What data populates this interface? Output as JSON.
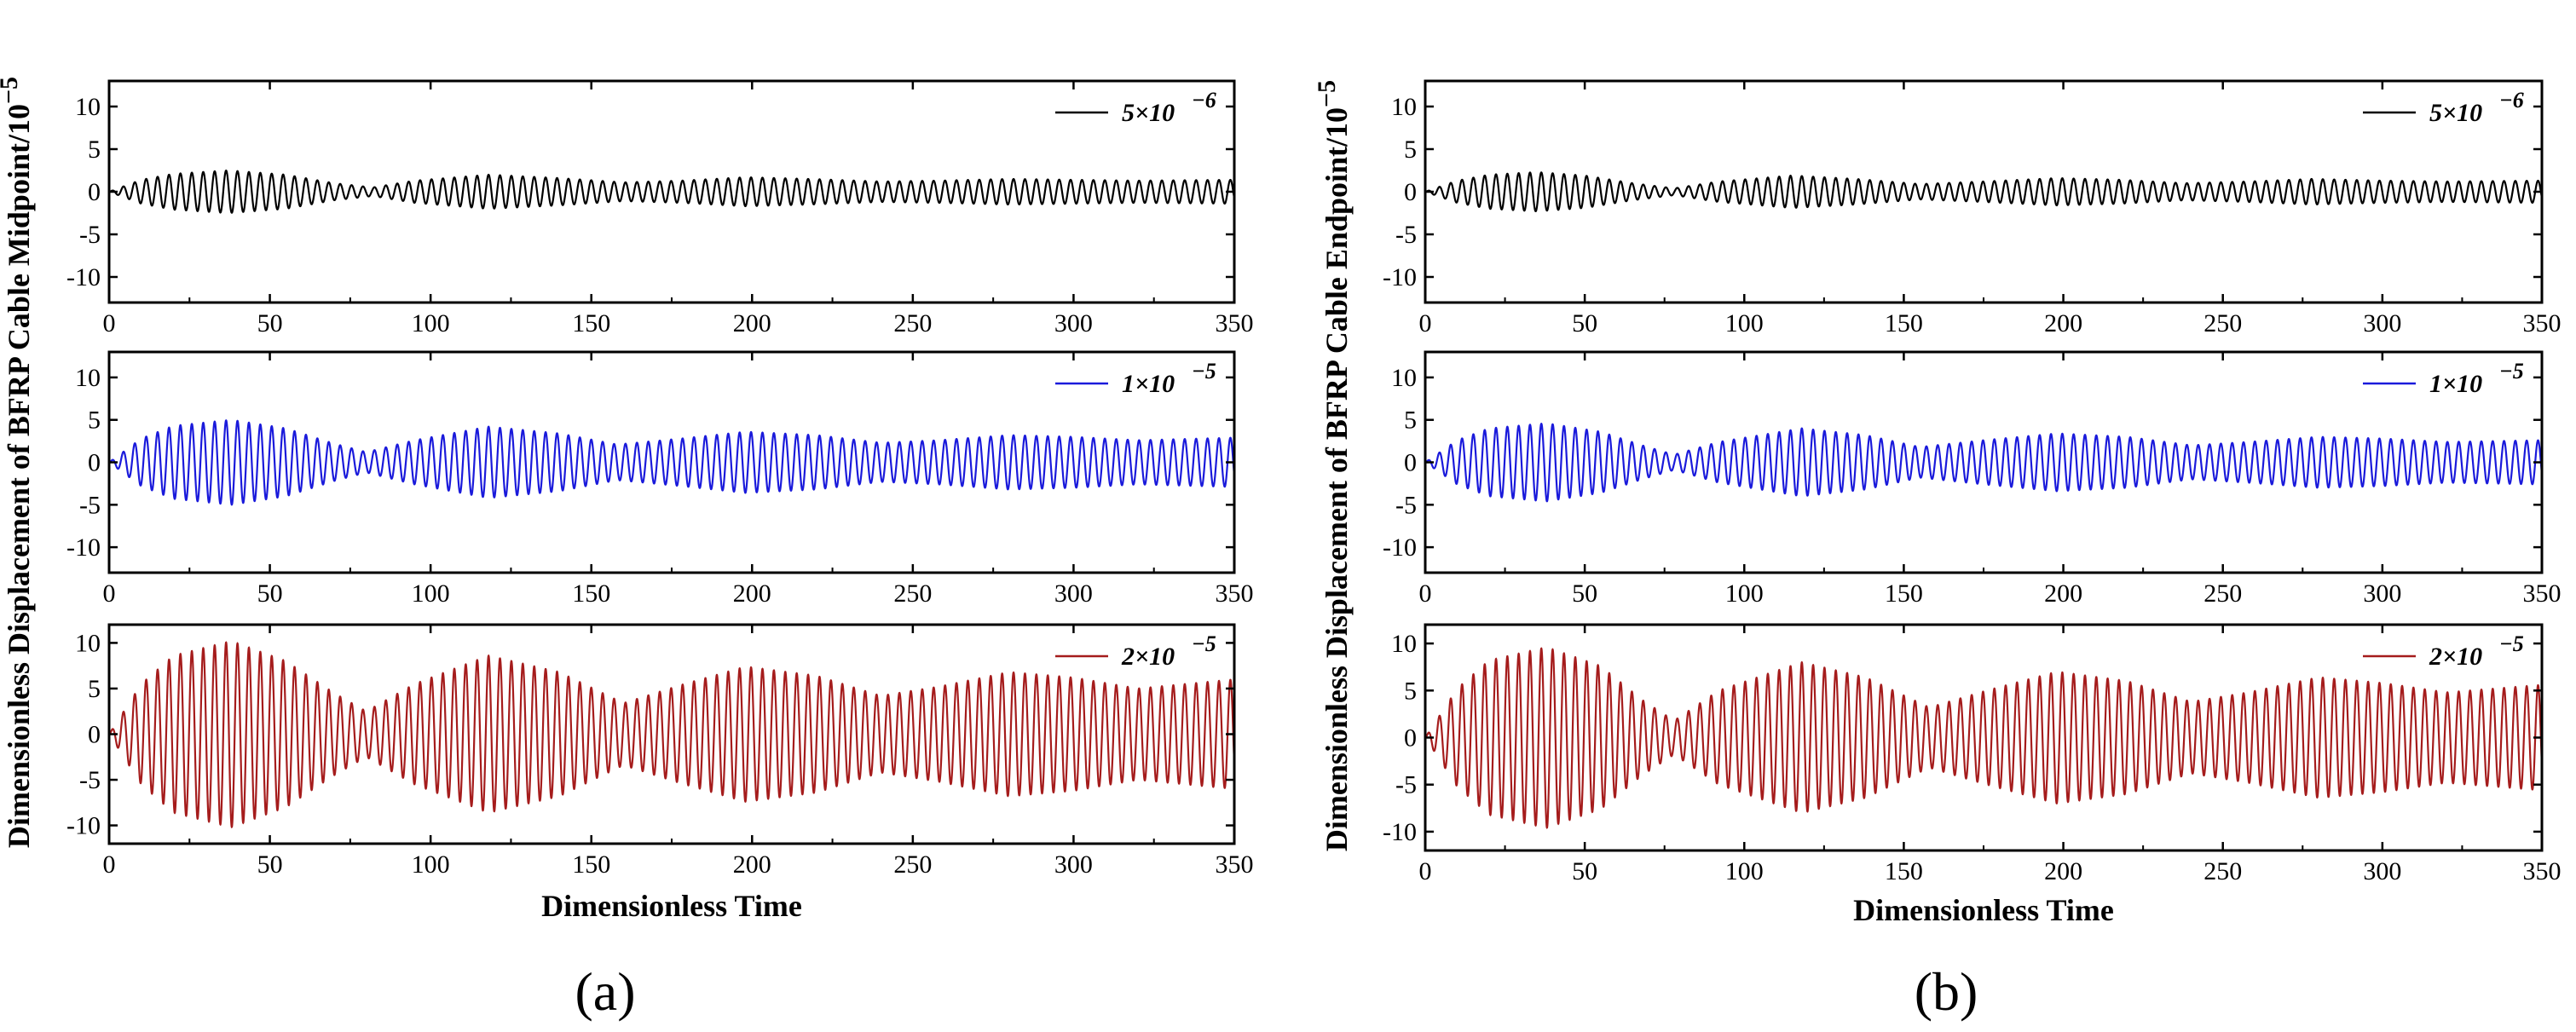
{
  "chart_data": [
    {
      "id": "a",
      "caption": "(a)",
      "ylabel": "Dimensionless Displacement of BFRP Cable Midpoint/10",
      "ylabel_exponent": "−5",
      "xlabel": "Dimensionless Time",
      "panels": [
        {
          "type": "line",
          "series_name": "5×10 −6",
          "legend_base": "5×10",
          "legend_exp": "−6",
          "color": "#000000",
          "xlim": [
            0,
            350
          ],
          "ylim": [
            -13,
            13
          ],
          "xticks": [
            "0",
            "50",
            "100",
            "150",
            "200",
            "250",
            "300",
            "350"
          ],
          "yticks": [
            "10",
            "5",
            "0",
            "-5",
            "-10"
          ],
          "ytick_values": [
            10,
            5,
            0,
            -5,
            -10
          ],
          "envelope_t": [
            0,
            10,
            20,
            37,
            55,
            70,
            82,
            95,
            118,
            140,
            160,
            178,
            198,
            218,
            240,
            258,
            280,
            300,
            320,
            350
          ],
          "envelope_a": [
            0.0,
            1.4,
            2.1,
            2.5,
            2.0,
            1.0,
            0.5,
            1.3,
            2.0,
            1.6,
            1.1,
            1.3,
            1.7,
            1.5,
            1.2,
            1.3,
            1.5,
            1.4,
            1.3,
            1.4
          ]
        },
        {
          "type": "line",
          "series_name": "1×10 −5",
          "legend_base": "1×10",
          "legend_exp": "−5",
          "color": "#1a1adb",
          "xlim": [
            0,
            350
          ],
          "ylim": [
            -13,
            13
          ],
          "xticks": [
            "0",
            "50",
            "100",
            "150",
            "200",
            "250",
            "300",
            "350"
          ],
          "yticks": [
            "10",
            "5",
            "0",
            "-5",
            "-10"
          ],
          "ytick_values": [
            10,
            5,
            0,
            -5,
            -10
          ],
          "envelope_t": [
            0,
            10,
            20,
            38,
            55,
            70,
            80,
            95,
            118,
            140,
            158,
            178,
            198,
            220,
            240,
            258,
            280,
            300,
            320,
            350
          ],
          "envelope_a": [
            0.0,
            2.8,
            4.3,
            5.0,
            4.0,
            2.2,
            1.2,
            2.6,
            4.2,
            3.4,
            2.1,
            2.8,
            3.6,
            3.2,
            2.3,
            2.6,
            3.2,
            3.0,
            2.6,
            2.9
          ]
        },
        {
          "type": "line",
          "series_name": "2×10 −5",
          "legend_base": "2×10",
          "legend_exp": "−5",
          "color": "#a51c1c",
          "xlim": [
            0,
            350
          ],
          "ylim": [
            -12,
            12
          ],
          "xticks": [
            "0",
            "50",
            "100",
            "150",
            "200",
            "250",
            "300",
            "350"
          ],
          "yticks": [
            "10",
            "5",
            "0",
            "-5",
            "-10"
          ],
          "ytick_values": [
            10,
            5,
            0,
            -5,
            -10
          ],
          "envelope_t": [
            0,
            10,
            20,
            38,
            55,
            70,
            80,
            95,
            118,
            140,
            160,
            178,
            198,
            220,
            240,
            258,
            280,
            300,
            320,
            350
          ],
          "envelope_a": [
            0.0,
            5.5,
            8.6,
            10.2,
            8.0,
            4.5,
            2.5,
            5.5,
            8.6,
            6.8,
            3.4,
            5.4,
            7.4,
            6.4,
            4.2,
            5.2,
            6.8,
            6.2,
            5.0,
            6.0
          ]
        }
      ]
    },
    {
      "id": "b",
      "caption": "(b)",
      "ylabel": "Dimensionless Displacement of BFRP Cable Endpoint/10",
      "ylabel_exponent": "−5",
      "xlabel": "Dimensionless Time",
      "panels": [
        {
          "type": "line",
          "series_name": "5×10 −6",
          "legend_base": "5×10",
          "legend_exp": "−6",
          "color": "#000000",
          "xlim": [
            0,
            350
          ],
          "ylim": [
            -13,
            13
          ],
          "xticks": [
            "0",
            "50",
            "100",
            "150",
            "200",
            "250",
            "300",
            "350"
          ],
          "yticks": [
            "10",
            "5",
            "0",
            "-5",
            "-10"
          ],
          "ytick_values": [
            10,
            5,
            0,
            -5,
            -10
          ],
          "envelope_t": [
            0,
            10,
            20,
            35,
            50,
            65,
            78,
            92,
            115,
            135,
            155,
            175,
            198,
            218,
            238,
            258,
            278,
            300,
            320,
            350
          ],
          "envelope_a": [
            0.0,
            1.3,
            2.0,
            2.3,
            1.9,
            1.0,
            0.4,
            1.2,
            1.9,
            1.5,
            0.9,
            1.2,
            1.6,
            1.4,
            1.0,
            1.2,
            1.5,
            1.3,
            1.2,
            1.3
          ]
        },
        {
          "type": "line",
          "series_name": "1×10 −5",
          "legend_base": "1×10",
          "legend_exp": "−5",
          "color": "#1a1adb",
          "xlim": [
            0,
            350
          ],
          "ylim": [
            -13,
            13
          ],
          "xticks": [
            "0",
            "50",
            "100",
            "150",
            "200",
            "250",
            "300",
            "350"
          ],
          "yticks": [
            "10",
            "5",
            "0",
            "-5",
            "-10"
          ],
          "ytick_values": [
            10,
            5,
            0,
            -5,
            -10
          ],
          "envelope_t": [
            0,
            10,
            20,
            38,
            55,
            68,
            78,
            92,
            118,
            138,
            155,
            175,
            198,
            220,
            240,
            258,
            280,
            300,
            320,
            350
          ],
          "envelope_a": [
            0.0,
            2.6,
            4.0,
            4.6,
            3.6,
            2.0,
            0.9,
            2.4,
            4.0,
            3.2,
            1.8,
            2.6,
            3.4,
            3.0,
            2.0,
            2.4,
            3.0,
            2.8,
            2.4,
            2.6
          ]
        },
        {
          "type": "line",
          "series_name": "2×10 −5",
          "legend_base": "2×10",
          "legend_exp": "−5",
          "color": "#a51c1c",
          "xlim": [
            0,
            350
          ],
          "ylim": [
            -12,
            12
          ],
          "xticks": [
            "0",
            "50",
            "100",
            "150",
            "200",
            "250",
            "300",
            "350"
          ],
          "yticks": [
            "10",
            "5",
            "0",
            "-5",
            "-10"
          ],
          "ytick_values": [
            10,
            5,
            0,
            -5,
            -10
          ],
          "envelope_t": [
            0,
            10,
            20,
            38,
            55,
            68,
            78,
            92,
            118,
            138,
            158,
            176,
            198,
            220,
            240,
            258,
            280,
            300,
            320,
            350
          ],
          "envelope_a": [
            0.0,
            5.2,
            8.2,
            9.6,
            7.6,
            4.0,
            1.8,
            5.0,
            8.0,
            6.4,
            3.2,
            5.0,
            7.0,
            6.0,
            3.8,
            4.8,
            6.4,
            5.8,
            4.8,
            5.6
          ]
        }
      ]
    }
  ]
}
